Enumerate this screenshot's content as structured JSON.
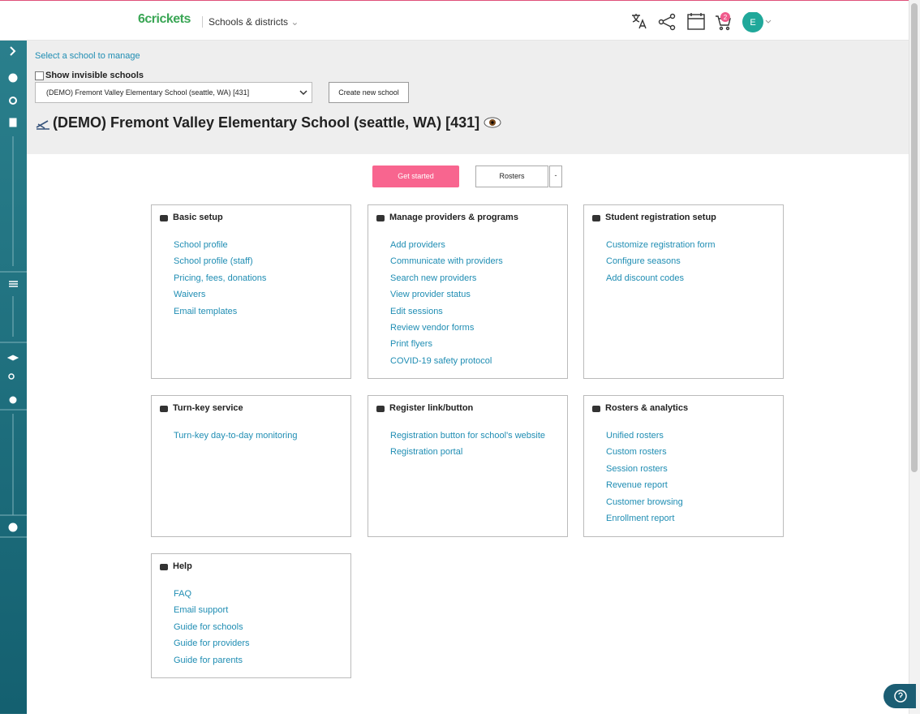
{
  "header": {
    "logo": "6crickets",
    "menu": "Schools & districts",
    "cart_count": 2,
    "avatar": "E"
  },
  "toolbar": {
    "select_label": "Select a school to manage",
    "checkbox_label": "Show invisible schools",
    "selected_school": "(DEMO) Fremont Valley Elementary School (seattle, WA) [431]",
    "create_button": "Create new school"
  },
  "school_title": "(DEMO) Fremont Valley Elementary School (seattle, WA) [431]",
  "actions": {
    "get_started": "Get started",
    "rosters": "Rosters"
  },
  "cards": [
    {
      "title": "Basic setup",
      "links": [
        "School profile",
        "School profile (staff)",
        "Pricing, fees, donations",
        "Waivers",
        "Email templates"
      ]
    },
    {
      "title": "Manage providers & programs",
      "links": [
        "Add providers",
        "Communicate with providers",
        "Search new providers",
        "View provider status",
        "Edit sessions",
        "Review vendor forms",
        "Print flyers",
        "COVID-19 safety protocol"
      ]
    },
    {
      "title": "Student registration setup",
      "links": [
        "Customize registration form",
        "Configure seasons",
        "Add discount codes"
      ]
    },
    {
      "title": "Turn-key service",
      "links": [
        "Turn-key day-to-day monitoring"
      ]
    },
    {
      "title": "Register link/button",
      "links": [
        "Registration button for school's website",
        "Registration portal"
      ]
    },
    {
      "title": "Rosters & analytics",
      "links": [
        "Unified rosters",
        "Custom rosters",
        "Session rosters",
        "Revenue report",
        "Customer browsing",
        "Enrollment report"
      ]
    },
    {
      "title": "Help",
      "links": [
        "FAQ",
        "Email support",
        "Guide for schools",
        "Guide for providers",
        "Guide for parents"
      ]
    }
  ]
}
